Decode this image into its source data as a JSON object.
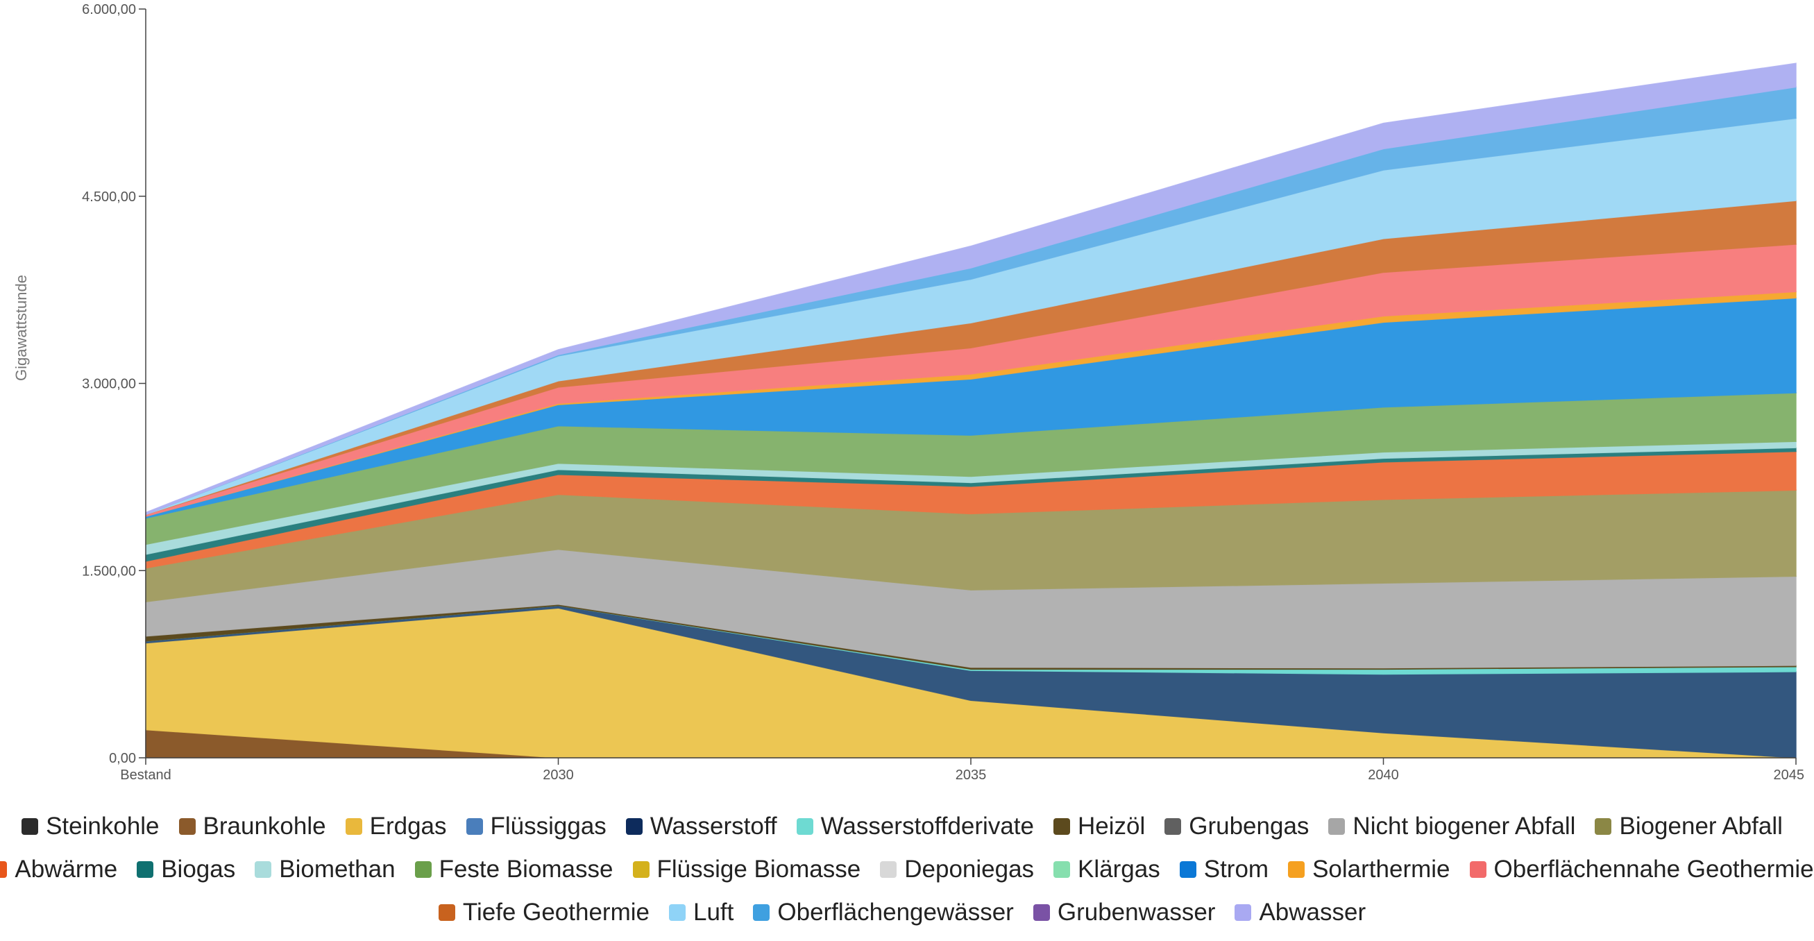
{
  "chart_data": {
    "type": "area",
    "stacked": true,
    "ylabel": "Gigawattstunde",
    "xlabel": "",
    "ylim": [
      0,
      6000
    ],
    "yticks": [
      "0,00",
      "1.500,00",
      "3.000,00",
      "4.500,00",
      "6.000,00"
    ],
    "ytick_values": [
      0,
      1500,
      3000,
      4500,
      6000
    ],
    "categories": [
      "Bestand",
      "2030",
      "2035",
      "2040",
      "2045"
    ],
    "grid": false,
    "legend_position": "bottom",
    "series": [
      {
        "name": "Steinkohle",
        "color": "#2b2b2b",
        "values": [
          0,
          0,
          0,
          0,
          0
        ]
      },
      {
        "name": "Braunkohle",
        "color": "#8b5a2b",
        "values": [
          225,
          0,
          0,
          0,
          0
        ]
      },
      {
        "name": "Erdgas",
        "color": "#ecc653",
        "values": [
          695,
          1200,
          460,
          200,
          0
        ]
      },
      {
        "name": "Flüssiggas",
        "color": "#4a7ebb",
        "values": [
          0,
          0,
          0,
          0,
          0
        ]
      },
      {
        "name": "Wasserstoff",
        "color": "#33577f",
        "values": [
          15,
          20,
          240,
          470,
          690
        ]
      },
      {
        "name": "Wasserstoffderivate",
        "color": "#6edad2",
        "values": [
          0,
          0,
          10,
          40,
          40
        ]
      },
      {
        "name": "Heizöl",
        "color": "#5c4a1e",
        "values": [
          40,
          10,
          15,
          10,
          10
        ]
      },
      {
        "name": "Grubengas",
        "color": "#606060",
        "values": [
          0,
          0,
          0,
          0,
          0
        ]
      },
      {
        "name": "Nicht biogener Abfall",
        "color": "#b2b2b2",
        "values": [
          275,
          440,
          620,
          680,
          715
        ]
      },
      {
        "name": "Biogener Abfall",
        "color": "#a39e65",
        "values": [
          270,
          440,
          610,
          670,
          690
        ]
      },
      {
        "name": "Abwärme",
        "color": "#ec7444",
        "values": [
          55,
          160,
          220,
          300,
          310
        ]
      },
      {
        "name": "Biogas",
        "color": "#2a7f7f",
        "values": [
          55,
          40,
          30,
          30,
          30
        ]
      },
      {
        "name": "Biomethan",
        "color": "#a9dcdc",
        "values": [
          80,
          50,
          50,
          50,
          50
        ]
      },
      {
        "name": "Feste Biomasse",
        "color": "#86b36e",
        "values": [
          210,
          300,
          330,
          360,
          390
        ]
      },
      {
        "name": "Flüssige Biomasse",
        "color": "#d4b11c",
        "values": [
          0,
          0,
          0,
          0,
          0
        ]
      },
      {
        "name": "Deponiegas",
        "color": "#d8d8d8",
        "values": [
          0,
          0,
          0,
          0,
          0
        ]
      },
      {
        "name": "Klärgas",
        "color": "#86dfae",
        "values": [
          0,
          0,
          0,
          0,
          0
        ]
      },
      {
        "name": "Strom",
        "color": "#3098e2",
        "values": [
          15,
          170,
          450,
          680,
          760
        ]
      },
      {
        "name": "Solarthermie",
        "color": "#f5a832",
        "values": [
          0,
          10,
          40,
          50,
          50
        ]
      },
      {
        "name": "Oberflächennahe Geothermie",
        "color": "#f77f7f",
        "values": [
          15,
          130,
          210,
          350,
          380
        ]
      },
      {
        "name": "Tiefe Geothermie",
        "color": "#d27a3e",
        "values": [
          0,
          50,
          200,
          270,
          350
        ]
      },
      {
        "name": "Luft",
        "color": "#a0d9f5",
        "values": [
          0,
          200,
          350,
          550,
          660
        ]
      },
      {
        "name": "Oberflächengewässer",
        "color": "#66b3e8",
        "values": [
          0,
          10,
          90,
          170,
          250
        ]
      },
      {
        "name": "Grubenwasser",
        "color": "#7a52a5",
        "values": [
          0,
          0,
          0,
          0,
          0
        ]
      },
      {
        "name": "Abwasser",
        "color": "#afb1f2",
        "values": [
          15,
          40,
          175,
          205,
          190
        ]
      }
    ]
  },
  "legend_rows": [
    [
      "Steinkohle",
      "Braunkohle",
      "Erdgas",
      "Flüssiggas",
      "Wasserstoff",
      "Wasserstoffderivate",
      "Heizöl",
      "Grubengas",
      "Nicht biogener Abfall",
      "Biogener Abfall"
    ],
    [
      "Abwärme",
      "Biogas",
      "Biomethan",
      "Feste Biomasse",
      "Flüssige Biomasse",
      "Deponiegas",
      "Klärgas",
      "Strom",
      "Solarthermie",
      "Oberflächennahe Geothermie"
    ],
    [
      "Tiefe Geothermie",
      "Luft",
      "Oberflächengewässer",
      "Grubenwasser",
      "Abwasser"
    ]
  ],
  "legend_colors": {
    "Steinkohle": "#2b2b2b",
    "Braunkohle": "#8b5a2b",
    "Erdgas": "#e9b83c",
    "Flüssiggas": "#4a7ebb",
    "Wasserstoff": "#0d2b5c",
    "Wasserstoffderivate": "#6edad2",
    "Heizöl": "#5c4a1e",
    "Grubengas": "#606060",
    "Nicht biogener Abfall": "#a6a6a6",
    "Biogener Abfall": "#8b8745",
    "Abwärme": "#e8561b",
    "Biogas": "#0f7070",
    "Biomethan": "#a9dcdc",
    "Feste Biomasse": "#6a9f4a",
    "Flüssige Biomasse": "#d4b11c",
    "Deponiegas": "#d8d8d8",
    "Klärgas": "#86dfae",
    "Strom": "#0b78d6",
    "Solarthermie": "#f5a020",
    "Oberflächennahe Geothermie": "#f26a6a",
    "Tiefe Geothermie": "#c8621e",
    "Luft": "#8fd3f7",
    "Oberflächengewässer": "#3fa0e0",
    "Grubenwasser": "#7a52a5",
    "Abwasser": "#a9a9f2"
  }
}
